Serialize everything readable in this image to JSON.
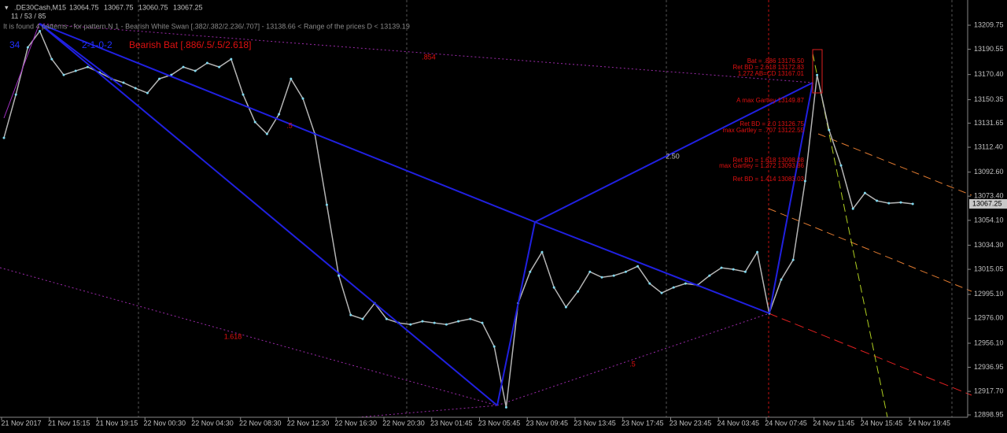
{
  "chart_data": {
    "type": "line",
    "symbol": ".DE30Cash,M15",
    "header_ohlc": [
      13064.75,
      {
        "value": 13067.75,
        "label": "13067.75"
      },
      {
        "value": 13060.75,
        "label": "13060.75"
      },
      13067.25
    ],
    "counter": "11 / 53 / 85",
    "info": "It is found 4 patterns  - for pattern N 1 - Bearish White Swan [.382/.382/2.236/.707] - 13138.66 < Range of the prices D < 13139.19",
    "pattern_number": "34",
    "pattern_code": "2-1-0-2",
    "pattern_name": "Bearish Bat [.886/.5/.5/2.618]",
    "ratio_labels": [
      ".854",
      ".5",
      "1.618",
      ".5",
      "2.50"
    ],
    "level_labels": [
      "Bat = .886   13176.50",
      "Ret BD = 2.618   13172.83",
      "1.272  AB=CD   13167.01",
      "A max Gartley   13149.87",
      "Ret BD = 2.0   13126.75",
      "max Gartley = .707   13122.55",
      "Ret BD = 1.618   13098.08",
      "max Gartley = 1.272   13093.86",
      "Ret BD = 1.414   13083.03"
    ],
    "color": "#b4b4b4",
    "values": [
      13119.9,
      13154.4,
      13192.1,
      13205,
      13182.7,
      13170.1,
      13173.3,
      13176.4,
      13172.0,
      13167.0,
      13163.9,
      13159.5,
      13155.7,
      13167.0,
      13170.1,
      13176.4,
      13173.3,
      13179.6,
      13176.4,
      13182.7,
      13154.4,
      13132.5,
      13123.0,
      13138.7,
      13167.0,
      13151.3,
      13123.0,
      13066.5,
      13010.0,
      12978.6,
      12975.5,
      12988.0,
      12975.5,
      12972.3,
      12971.1,
      12973.6,
      12972.3,
      12971.1,
      12973.6,
      12975.5,
      12972.3,
      12953.5,
      12905,
      12988.0,
      13013.1,
      13028.8,
      13000.6,
      12984.9,
      12997.4,
      13013.1,
      13008.7,
      13010.0,
      13013.1,
      13017.5,
      13003.7,
      12996.2,
      13000.6,
      13003.7,
      13002.5,
      13010.0,
      13016.3,
      13015.0,
      13013.1,
      13028.8,
      12980,
      13006.9,
      13022.6,
      13085.4,
      13170,
      13126.2,
      13097.9,
      13063.4,
      13075.9,
      13069.7,
      13067.8,
      13068.4,
      13067.25
    ],
    "current_price": 13067.25,
    "xtick_labels": [
      "21 Nov 2017",
      "21 Nov 15:15",
      "21 Nov 19:15",
      "22 Nov 00:30",
      "22 Nov 04:30",
      "22 Nov 08:30",
      "22 Nov 12:30",
      "22 Nov 16:30",
      "22 Nov 20:30",
      "23 Nov 01:45",
      "23 Nov 05:45",
      "23 Nov 09:45",
      "23 Nov 13:45",
      "23 Nov 17:45",
      "23 Nov 23:45",
      "24 Nov 03:45",
      "24 Nov 07:45",
      "24 Nov 11:45",
      "24 Nov 15:45",
      "24 Nov 19:45"
    ],
    "ylim": [
      12897.07,
      13229.84
    ],
    "yticks": [
      13209.75,
      13190.55,
      {
        "value": 13170.4,
        "label": "13170.40"
      },
      13150.35,
      13131.65,
      {
        "value": 13112.4,
        "label": "13112.40"
      },
      {
        "value": 13092.6,
        "label": "13092.60"
      },
      {
        "value": 13073.4,
        "label": "13073.40"
      },
      {
        "value": 13054.1,
        "label": "13054.10"
      },
      {
        "value": 13034.3,
        "label": "13034.30"
      },
      13015.05,
      {
        "value": 12995.1,
        "label": "12995.10"
      },
      {
        "value": 12976,
        "label": "12976.00"
      },
      {
        "value": 12956.1,
        "label": "12956.10"
      },
      12936.95,
      {
        "value": 12917.7,
        "label": "12917.70"
      },
      12898.95
    ]
  }
}
